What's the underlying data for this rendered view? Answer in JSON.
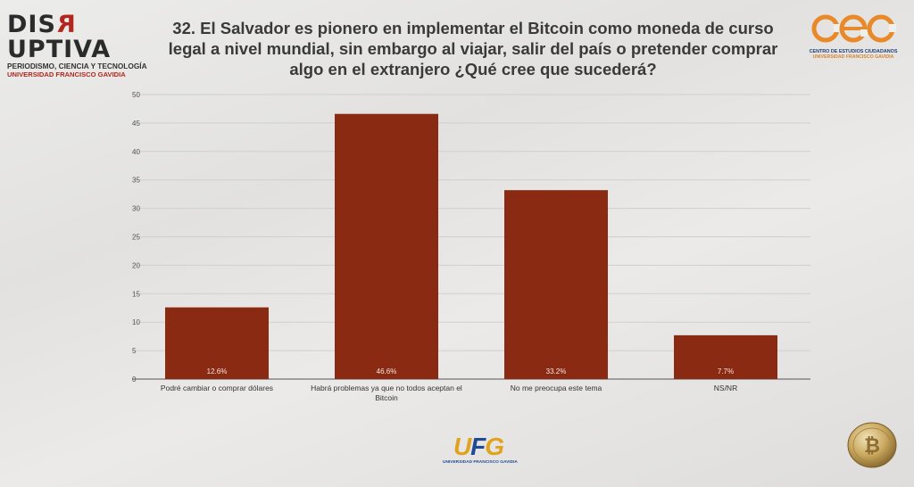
{
  "header": {
    "title": "32. El Salvador es pionero en implementar el Bitcoin como moneda de curso legal a nivel mundial, sin embargo al viajar, salir del país o pretender comprar algo en el extranjero ¿Qué cree que sucederá?"
  },
  "logos": {
    "disruptiva": {
      "pre": "DIS",
      "r": "R",
      "post": "UPTIVA",
      "line1": "PERIODISMO, CIENCIA Y TECNOLOGÍA",
      "line2": "UNIVERSIDAD FRANCISCO GAVIDIA"
    },
    "cec": {
      "mark": "cec",
      "line1": "CENTRO DE ESTUDIOS CIUDADANOS",
      "line2": "UNIVERSIDAD FRANCISCO GAVIDIA"
    },
    "ufg": {
      "u": "U",
      "f": "F",
      "g": "G",
      "line1": "UNIVERSIDAD FRANCISCO GAVIDIA"
    }
  },
  "colors": {
    "bar": "#8a2a12",
    "grid": "#cfcfcd",
    "axis": "#555555"
  },
  "chart_data": {
    "type": "bar",
    "categories": [
      "Podré cambiar o comprar dólares",
      "Habrá problemas ya que no todos aceptan el Bitcoin",
      "No me preocupa este tema",
      "NS/NR"
    ],
    "values": [
      12.6,
      46.6,
      33.2,
      7.7
    ],
    "data_labels": [
      "12.6%",
      "46.6%",
      "33.2%",
      "7.7%"
    ],
    "ylim": [
      0,
      50
    ],
    "yticks": [
      "0",
      "5",
      "10",
      "15",
      "20",
      "25",
      "30",
      "35",
      "40",
      "45",
      "50"
    ],
    "grid": true
  }
}
